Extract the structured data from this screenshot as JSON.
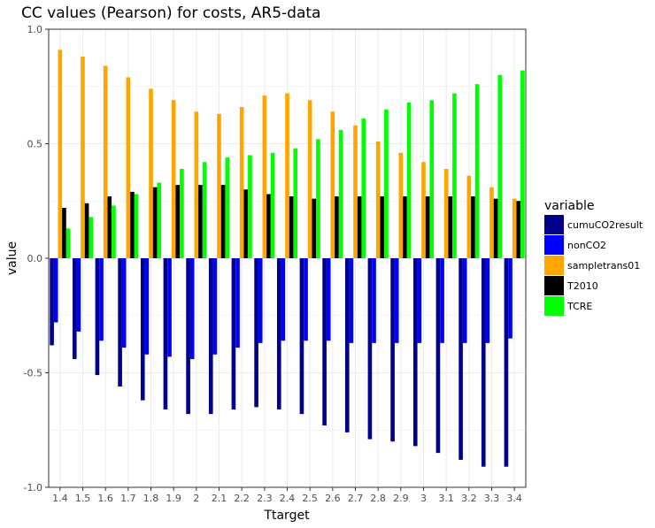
{
  "chart_data": {
    "type": "bar",
    "title": "CC values (Pearson) for costs, AR5-data",
    "xlabel": "Ttarget",
    "ylabel": "value",
    "ylim": [
      -1.0,
      1.0
    ],
    "yticks": [
      "-1.0",
      "-0.5",
      "0.0",
      "0.5",
      "1.0"
    ],
    "grid": true,
    "legend": {
      "title": "variable",
      "placement": "right"
    },
    "categories": [
      "1.4",
      "1.5",
      "1.6",
      "1.7",
      "1.8",
      "1.9",
      "2",
      "2.1",
      "2.2",
      "2.3",
      "2.4",
      "2.5",
      "2.6",
      "2.7",
      "2.8",
      "2.9",
      "3",
      "3.1",
      "3.2",
      "3.3",
      "3.4"
    ],
    "series": [
      {
        "name": "cumuCO2result",
        "color": "#00008B",
        "values": [
          -0.38,
          -0.44,
          -0.51,
          -0.56,
          -0.62,
          -0.66,
          -0.68,
          -0.68,
          -0.66,
          -0.65,
          -0.66,
          -0.68,
          -0.73,
          -0.76,
          -0.79,
          -0.8,
          -0.82,
          -0.85,
          -0.88,
          -0.91,
          -0.91
        ]
      },
      {
        "name": "nonCO2",
        "color": "#0000FF",
        "values": [
          -0.28,
          -0.32,
          -0.36,
          -0.39,
          -0.42,
          -0.43,
          -0.44,
          -0.42,
          -0.39,
          -0.37,
          -0.36,
          -0.36,
          -0.36,
          -0.37,
          -0.37,
          -0.37,
          -0.37,
          -0.37,
          -0.37,
          -0.37,
          -0.35
        ]
      },
      {
        "name": "sampletrans01",
        "color": "#FFA500",
        "values": [
          0.91,
          0.88,
          0.84,
          0.79,
          0.74,
          0.69,
          0.64,
          0.63,
          0.66,
          0.71,
          0.72,
          0.69,
          0.64,
          0.58,
          0.51,
          0.46,
          0.42,
          0.39,
          0.36,
          0.31,
          0.26
        ]
      },
      {
        "name": "T2010",
        "color": "#000000",
        "values": [
          0.22,
          0.24,
          0.27,
          0.29,
          0.31,
          0.32,
          0.32,
          0.32,
          0.3,
          0.28,
          0.27,
          0.26,
          0.27,
          0.27,
          0.27,
          0.27,
          0.27,
          0.27,
          0.27,
          0.26,
          0.25
        ]
      },
      {
        "name": "TCRE",
        "color": "#00FF00",
        "values": [
          0.13,
          0.18,
          0.23,
          0.28,
          0.33,
          0.39,
          0.42,
          0.44,
          0.45,
          0.46,
          0.48,
          0.52,
          0.56,
          0.61,
          0.65,
          0.68,
          0.69,
          0.72,
          0.76,
          0.8,
          0.82
        ]
      }
    ]
  }
}
